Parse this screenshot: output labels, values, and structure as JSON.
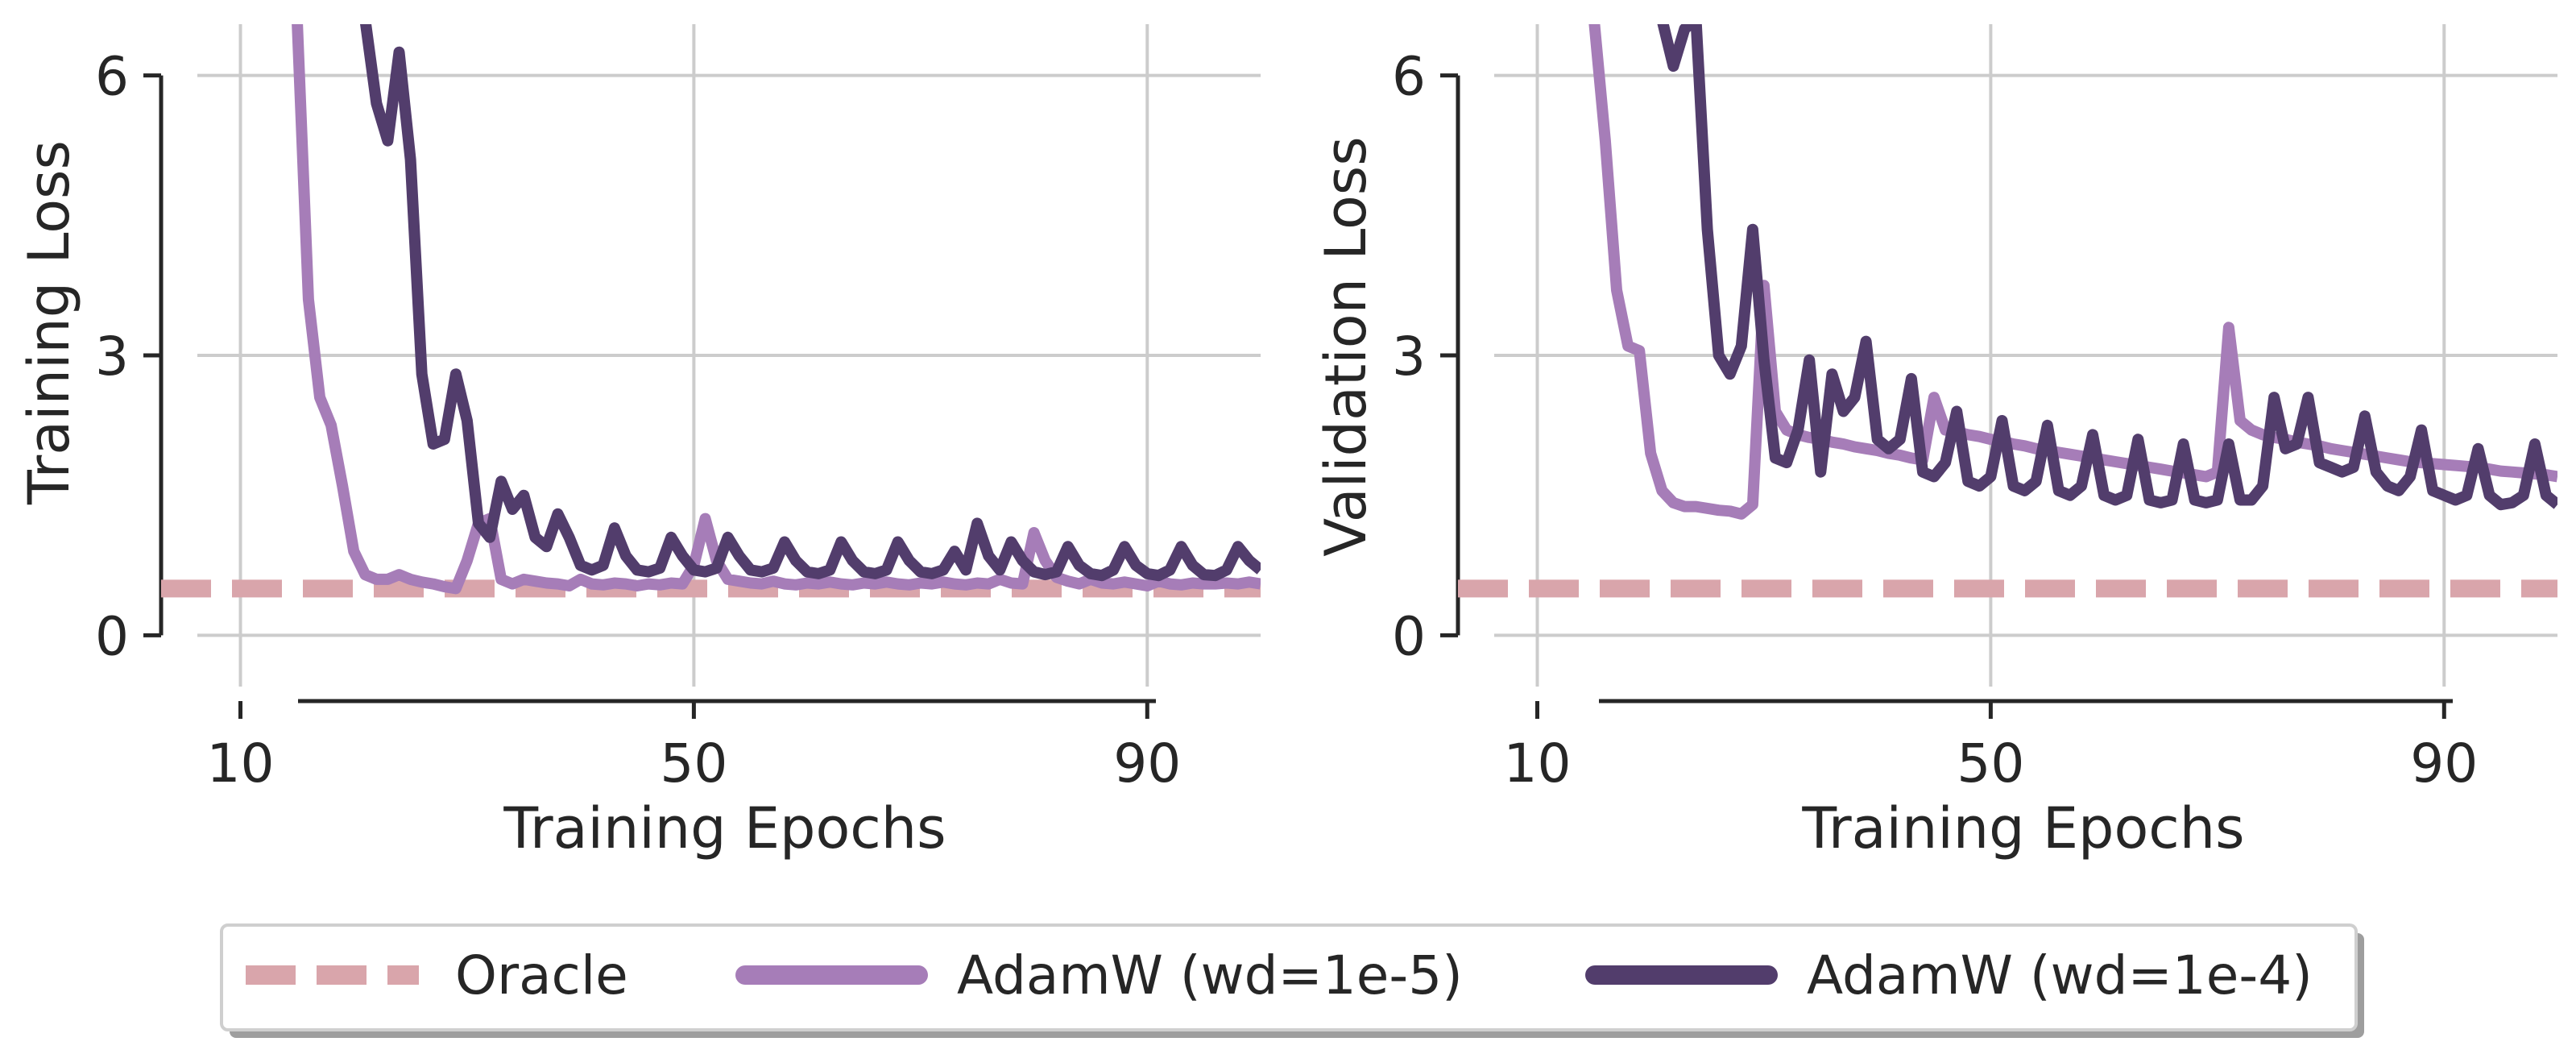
{
  "chart_data": [
    {
      "type": "line",
      "xlabel": "Training Epochs",
      "ylabel": "Training Loss",
      "xticks": [
        10,
        50,
        90
      ],
      "yticks": [
        0,
        3,
        6
      ],
      "xlim": [
        3,
        100
      ],
      "ylim": [
        -0.55,
        6.55
      ],
      "grid": true,
      "series": [
        {
          "name": "Oracle",
          "color": "#d9a5ab",
          "style": "dashed",
          "x": [
            3,
            100
          ],
          "y": [
            0.5,
            0.5
          ]
        },
        {
          "name": "AdamW (wd=1e-5)",
          "color": "#a67db8",
          "style": "solid",
          "x": [
            15,
            16,
            17,
            18,
            19,
            20,
            21,
            22,
            23,
            24,
            25,
            26,
            27,
            28,
            29,
            30,
            31,
            32,
            33,
            34,
            35,
            36,
            37,
            38,
            39,
            40,
            41,
            42,
            43,
            44,
            45,
            46,
            47,
            48,
            49,
            50,
            51,
            52,
            53,
            54,
            55,
            56,
            57,
            58,
            59,
            60,
            61,
            62,
            63,
            64,
            65,
            66,
            67,
            68,
            69,
            70,
            71,
            72,
            73,
            74,
            75,
            76,
            77,
            78,
            79,
            80,
            81,
            82,
            83,
            84,
            85,
            86,
            87,
            88,
            89,
            90,
            91,
            92,
            93,
            94,
            95,
            96,
            97,
            98,
            99,
            100
          ],
          "y": [
            6.6,
            3.6,
            2.55,
            2.25,
            1.6,
            0.9,
            0.65,
            0.6,
            0.6,
            0.65,
            0.6,
            0.57,
            0.55,
            0.52,
            0.5,
            0.8,
            1.2,
            1.25,
            0.6,
            0.55,
            0.6,
            0.58,
            0.56,
            0.55,
            0.53,
            0.6,
            0.55,
            0.54,
            0.56,
            0.55,
            0.53,
            0.55,
            0.54,
            0.56,
            0.55,
            0.75,
            1.25,
            0.8,
            0.6,
            0.58,
            0.56,
            0.55,
            0.58,
            0.55,
            0.54,
            0.56,
            0.55,
            0.57,
            0.55,
            0.54,
            0.56,
            0.55,
            0.57,
            0.55,
            0.54,
            0.56,
            0.55,
            0.57,
            0.55,
            0.54,
            0.56,
            0.55,
            0.6,
            0.56,
            0.55,
            1.1,
            0.8,
            0.62,
            0.58,
            0.55,
            0.6,
            0.56,
            0.55,
            0.57,
            0.55,
            0.53,
            0.58,
            0.55,
            0.54,
            0.56,
            0.55,
            0.55,
            0.56,
            0.55,
            0.57,
            0.55
          ]
        },
        {
          "name": "AdamW (wd=1e-4)",
          "color": "#523d6c",
          "style": "solid",
          "x": [
            21,
            22,
            23,
            24,
            25,
            26,
            27,
            28,
            29,
            30,
            31,
            32,
            33,
            34,
            35,
            36,
            37,
            38,
            39,
            40,
            41,
            42,
            43,
            44,
            45,
            46,
            47,
            48,
            49,
            50,
            51,
            52,
            53,
            54,
            55,
            56,
            57,
            58,
            59,
            60,
            61,
            62,
            63,
            64,
            65,
            66,
            67,
            68,
            69,
            70,
            71,
            72,
            73,
            74,
            75,
            76,
            77,
            78,
            79,
            80,
            81,
            82,
            83,
            84,
            85,
            86,
            87,
            88,
            89,
            90,
            91,
            92,
            93,
            94,
            95,
            96,
            97,
            98,
            99,
            100
          ],
          "y": [
            6.6,
            5.7,
            5.3,
            6.25,
            5.1,
            2.8,
            2.05,
            2.1,
            2.8,
            2.3,
            1.2,
            1.05,
            1.65,
            1.35,
            1.5,
            1.05,
            0.95,
            1.3,
            1.05,
            0.75,
            0.7,
            0.75,
            1.15,
            0.85,
            0.7,
            0.68,
            0.72,
            1.05,
            0.85,
            0.7,
            0.68,
            0.72,
            1.05,
            0.85,
            0.7,
            0.68,
            0.72,
            1.0,
            0.8,
            0.68,
            0.66,
            0.7,
            1.0,
            0.8,
            0.68,
            0.66,
            0.7,
            1.0,
            0.8,
            0.68,
            0.66,
            0.7,
            0.9,
            0.7,
            1.2,
            0.85,
            0.7,
            1.0,
            0.8,
            0.68,
            0.65,
            0.68,
            0.95,
            0.75,
            0.66,
            0.64,
            0.7,
            0.95,
            0.75,
            0.66,
            0.64,
            0.7,
            0.95,
            0.75,
            0.65,
            0.64,
            0.7,
            0.95,
            0.8,
            0.7
          ]
        }
      ]
    },
    {
      "type": "line",
      "xlabel": "Training Epochs",
      "ylabel": "Validation Loss",
      "xticks": [
        10,
        50,
        90
      ],
      "yticks": [
        0,
        3,
        6
      ],
      "xlim": [
        3,
        100
      ],
      "ylim": [
        -0.55,
        6.55
      ],
      "grid": true,
      "series": [
        {
          "name": "Oracle",
          "color": "#d9a5ab",
          "style": "dashed",
          "x": [
            3,
            100
          ],
          "y": [
            0.5,
            0.5
          ]
        },
        {
          "name": "AdamW (wd=1e-5)",
          "color": "#a67db8",
          "style": "solid",
          "x": [
            15,
            16,
            17,
            18,
            19,
            20,
            21,
            22,
            23,
            24,
            25,
            26,
            27,
            28,
            29,
            30,
            31,
            32,
            33,
            34,
            35,
            36,
            37,
            38,
            39,
            40,
            41,
            42,
            43,
            44,
            45,
            46,
            47,
            48,
            49,
            50,
            51,
            52,
            53,
            54,
            55,
            56,
            57,
            58,
            59,
            60,
            61,
            62,
            63,
            64,
            65,
            66,
            67,
            68,
            69,
            70,
            71,
            72,
            73,
            74,
            75,
            76,
            77,
            78,
            79,
            80,
            81,
            82,
            83,
            84,
            85,
            86,
            87,
            88,
            89,
            90,
            91,
            92,
            93,
            94,
            95,
            96,
            97,
            98,
            99,
            100
          ],
          "y": [
            6.6,
            5.3,
            3.7,
            3.1,
            3.05,
            1.95,
            1.55,
            1.42,
            1.38,
            1.38,
            1.36,
            1.34,
            1.33,
            1.3,
            1.4,
            3.75,
            2.4,
            2.2,
            2.15,
            2.12,
            2.1,
            2.07,
            2.05,
            2.02,
            2.0,
            1.98,
            1.95,
            1.93,
            1.9,
            1.88,
            2.55,
            2.2,
            2.18,
            2.15,
            2.13,
            2.1,
            2.08,
            2.05,
            2.03,
            2.0,
            1.98,
            1.96,
            1.94,
            1.92,
            1.9,
            1.88,
            1.86,
            1.84,
            1.82,
            1.8,
            1.78,
            1.76,
            1.74,
            1.72,
            1.7,
            1.75,
            3.3,
            2.3,
            2.2,
            2.15,
            2.12,
            2.1,
            2.07,
            2.05,
            2.03,
            2.0,
            1.98,
            1.96,
            1.94,
            1.92,
            1.9,
            1.88,
            1.86,
            1.85,
            1.84,
            1.83,
            1.82,
            1.81,
            1.8,
            1.78,
            1.76,
            1.75,
            1.74,
            1.73,
            1.72,
            1.7
          ]
        },
        {
          "name": "AdamW (wd=1e-4)",
          "color": "#523d6c",
          "style": "solid",
          "x": [
            21,
            22,
            23,
            24,
            25,
            26,
            27,
            28,
            29,
            30,
            31,
            32,
            33,
            34,
            35,
            36,
            37,
            38,
            39,
            40,
            41,
            42,
            43,
            44,
            45,
            46,
            47,
            48,
            49,
            50,
            51,
            52,
            53,
            54,
            55,
            56,
            57,
            58,
            59,
            60,
            61,
            62,
            63,
            64,
            65,
            66,
            67,
            68,
            69,
            70,
            71,
            72,
            73,
            74,
            75,
            76,
            77,
            78,
            79,
            80,
            81,
            82,
            83,
            84,
            85,
            86,
            87,
            88,
            89,
            90,
            91,
            92,
            93,
            94,
            95,
            96,
            97,
            98,
            99,
            100
          ],
          "y": [
            6.6,
            6.1,
            6.5,
            6.6,
            4.35,
            3.0,
            2.8,
            3.1,
            4.35,
            2.95,
            1.9,
            1.85,
            2.2,
            2.95,
            1.75,
            2.8,
            2.4,
            2.55,
            3.15,
            2.1,
            2.0,
            2.1,
            2.75,
            1.75,
            1.7,
            1.85,
            2.4,
            1.65,
            1.6,
            1.7,
            2.3,
            1.6,
            1.55,
            1.65,
            2.25,
            1.55,
            1.5,
            1.6,
            2.15,
            1.5,
            1.45,
            1.5,
            2.1,
            1.45,
            1.42,
            1.45,
            2.05,
            1.45,
            1.42,
            1.45,
            2.05,
            1.45,
            1.45,
            1.6,
            2.55,
            2.0,
            2.05,
            2.55,
            1.85,
            1.8,
            1.75,
            1.8,
            2.35,
            1.75,
            1.6,
            1.55,
            1.7,
            2.2,
            1.55,
            1.5,
            1.45,
            1.5,
            2.0,
            1.5,
            1.4,
            1.42,
            1.5,
            2.05,
            1.5,
            1.4
          ]
        }
      ]
    }
  ],
  "legend": {
    "placement": "bottom-center",
    "items": [
      {
        "label": "Oracle",
        "color": "#d9a5ab",
        "style": "dashed"
      },
      {
        "label": "AdamW (wd=1e-5)",
        "color": "#a67db8",
        "style": "solid"
      },
      {
        "label": "AdamW (wd=1e-4)",
        "color": "#523d6c",
        "style": "solid"
      }
    ]
  },
  "colors": {
    "grid": "#cccccc",
    "axis": "#262626",
    "legend_frame": "#cfcfcf",
    "legend_shadow": "#9e9e9e"
  }
}
